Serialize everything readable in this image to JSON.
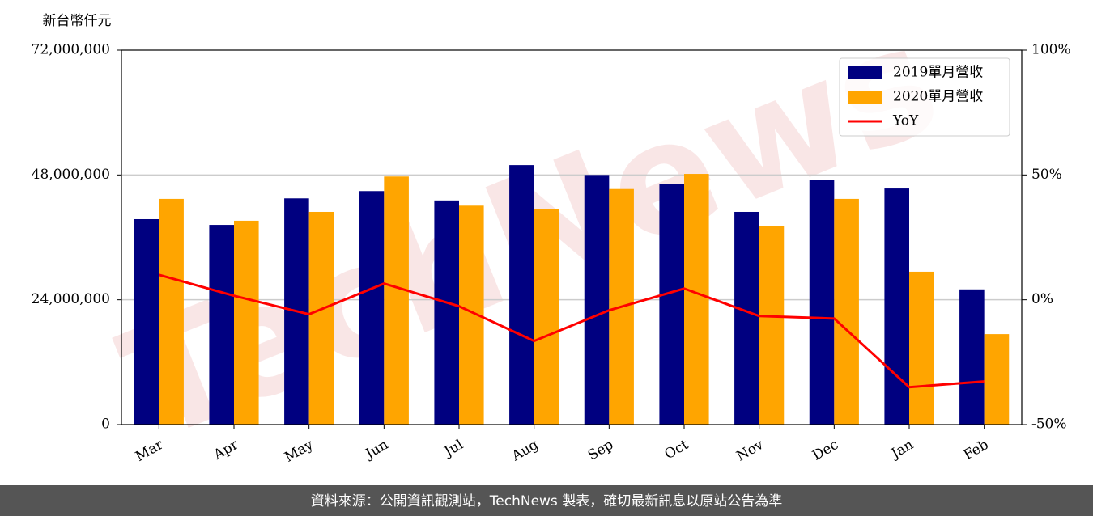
{
  "chart_data": {
    "type": "bar",
    "y_axis_label": "新台幣仟元",
    "categories": [
      "Mar",
      "Apr",
      "May",
      "Jun",
      "Jul",
      "Aug",
      "Sep",
      "Oct",
      "Nov",
      "Dec",
      "Jan",
      "Feb"
    ],
    "series": [
      {
        "name": "2019單月營收",
        "color": "#000080",
        "values": [
          39500000,
          38400000,
          43500000,
          44900000,
          43100000,
          49900000,
          48000000,
          46200000,
          40900000,
          47000000,
          45400000,
          26000000
        ]
      },
      {
        "name": "2020單月營收",
        "color": "#ffa500",
        "values": [
          43400000,
          39200000,
          40900000,
          47700000,
          42100000,
          41400000,
          45300000,
          48200000,
          38100000,
          43400000,
          29400000,
          17400000
        ]
      },
      {
        "name": "YoY",
        "type": "line",
        "axis": "y2",
        "color": "#ff0000",
        "values": [
          10.0,
          1.6,
          -5.8,
          6.5,
          -2.6,
          -16.5,
          -4.2,
          4.5,
          -6.5,
          -7.5,
          -35.0,
          -32.7
        ]
      }
    ],
    "ylim": [
      0,
      72000000
    ],
    "yticks": [
      {
        "value": 0,
        "label": "0"
      },
      {
        "value": 24000000,
        "label": "24,000,000"
      },
      {
        "value": 48000000,
        "label": "48,000,000"
      },
      {
        "value": 72000000,
        "label": "72,000,000"
      }
    ],
    "y2lim": [
      -50,
      100
    ],
    "y2ticks": [
      {
        "value": -50,
        "label": "-50%"
      },
      {
        "value": 0,
        "label": "0%"
      },
      {
        "value": 50,
        "label": "50%"
      },
      {
        "value": 100,
        "label": "100%"
      }
    ],
    "grid": true,
    "legend": "upper right",
    "watermark": "TechNews"
  },
  "footer": "資料來源：公開資訊觀測站，TechNews 製表，確切最新訊息以原站公告為準"
}
